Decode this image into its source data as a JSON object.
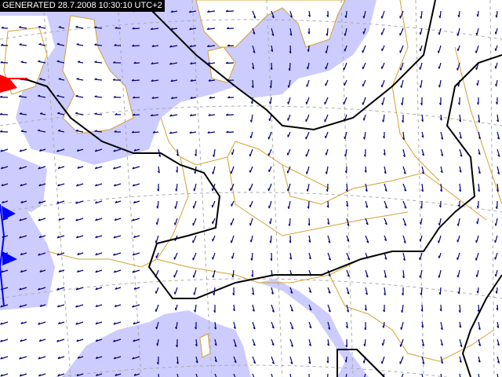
{
  "header": {
    "generated_label": "GENERATED 28.7.2008 10:30:10 UTC+2"
  },
  "colors": {
    "sea": "#ccccff",
    "land": "#ffffff",
    "borders": "#d4a030",
    "wind_arrows": "#00007a",
    "front_line": "#000000",
    "warm_front": "#ff0000",
    "cold_front": "#0000ff",
    "grid": "#aaaaaa"
  },
  "layers": [
    "sea",
    "land",
    "borders",
    "graticule",
    "wind-arrows",
    "fronts"
  ]
}
